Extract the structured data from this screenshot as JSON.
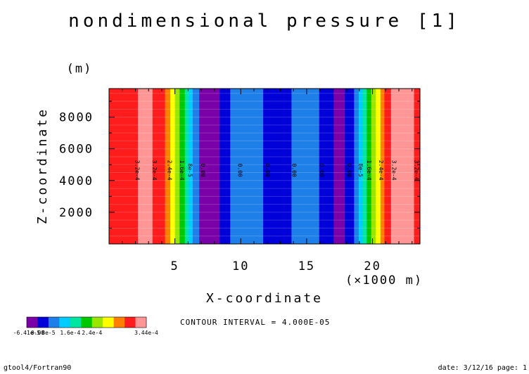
{
  "header": {
    "title": "nondimensional pressure [1]",
    "footer_left": "gtool4/Fortran90",
    "footer_right": "date: 3/12/16 page: 1",
    "contour_interval": "CONTOUR INTERVAL = 4.000E-05"
  },
  "chart_data": {
    "type": "heatmap",
    "title": "nondimensional pressure [1]",
    "xlabel": "X-coordinate",
    "x_unit": "(×1000 m)",
    "ylabel": "Z-coordinate",
    "y_unit": "(m)",
    "xlim": [
      0,
      23.6
    ],
    "ylim": [
      0,
      9800
    ],
    "x_ticks": [
      5,
      10,
      15,
      20
    ],
    "y_ticks": [
      2000,
      4000,
      6000,
      8000
    ],
    "x_minor_step": 1,
    "y_minor_step": 1000,
    "bands": [
      {
        "x0": 0.0,
        "x1": 2.2,
        "color": "#ff1c1c"
      },
      {
        "x0": 2.2,
        "x1": 3.3,
        "color": "#ff9696"
      },
      {
        "x0": 3.3,
        "x1": 4.25,
        "color": "#ff1c1c"
      },
      {
        "x0": 4.25,
        "x1": 4.65,
        "color": "#ff8000"
      },
      {
        "x0": 4.65,
        "x1": 5.0,
        "color": "#ffff00"
      },
      {
        "x0": 5.0,
        "x1": 5.35,
        "color": "#99e600"
      },
      {
        "x0": 5.35,
        "x1": 5.75,
        "color": "#00c800"
      },
      {
        "x0": 5.75,
        "x1": 6.05,
        "color": "#00e6a0"
      },
      {
        "x0": 6.05,
        "x1": 6.35,
        "color": "#00ccff"
      },
      {
        "x0": 6.35,
        "x1": 6.85,
        "color": "#1f7fe8"
      },
      {
        "x0": 6.85,
        "x1": 8.4,
        "color": "#7a00a8"
      },
      {
        "x0": 8.4,
        "x1": 9.2,
        "color": "#0000d8"
      },
      {
        "x0": 9.2,
        "x1": 11.7,
        "color": "#1f7fe8"
      },
      {
        "x0": 11.7,
        "x1": 13.85,
        "color": "#0000d8"
      },
      {
        "x0": 13.85,
        "x1": 15.95,
        "color": "#1f7fe8"
      },
      {
        "x0": 15.95,
        "x1": 17.05,
        "color": "#0000d8"
      },
      {
        "x0": 17.05,
        "x1": 17.9,
        "color": "#7a00a8"
      },
      {
        "x0": 17.9,
        "x1": 18.6,
        "color": "#0000d8"
      },
      {
        "x0": 18.6,
        "x1": 18.95,
        "color": "#1f7fe8"
      },
      {
        "x0": 18.95,
        "x1": 19.25,
        "color": "#00ccff"
      },
      {
        "x0": 19.25,
        "x1": 19.55,
        "color": "#00e6a0"
      },
      {
        "x0": 19.55,
        "x1": 19.9,
        "color": "#00c800"
      },
      {
        "x0": 19.9,
        "x1": 20.25,
        "color": "#99e600"
      },
      {
        "x0": 20.25,
        "x1": 20.6,
        "color": "#ffff00"
      },
      {
        "x0": 20.6,
        "x1": 20.9,
        "color": "#ff8000"
      },
      {
        "x0": 20.9,
        "x1": 21.4,
        "color": "#ff1c1c"
      },
      {
        "x0": 21.4,
        "x1": 23.15,
        "color": "#ff9696"
      },
      {
        "x0": 23.15,
        "x1": 23.6,
        "color": "#ff1c1c"
      }
    ],
    "contour_labels": [
      {
        "x": 2.0,
        "text": "3.2e-4"
      },
      {
        "x": 3.3,
        "text": "3.2e-4"
      },
      {
        "x": 4.45,
        "text": "2.4e-4"
      },
      {
        "x": 5.4,
        "text": "1.6e-4"
      },
      {
        "x": 6.0,
        "text": "8e-5"
      },
      {
        "x": 7.0,
        "text": "0.00"
      },
      {
        "x": 9.8,
        "text": "0.00"
      },
      {
        "x": 11.9,
        "text": "0.00"
      },
      {
        "x": 13.9,
        "text": "0.00"
      },
      {
        "x": 16.0,
        "text": "0.00"
      },
      {
        "x": 18.1,
        "text": "0.00"
      },
      {
        "x": 18.95,
        "text": "8e-5"
      },
      {
        "x": 19.6,
        "text": "1.6e-4"
      },
      {
        "x": 20.5,
        "text": "2.4e-4"
      },
      {
        "x": 21.5,
        "text": "3.2e-4"
      },
      {
        "x": 23.2,
        "text": "3.2e-4"
      }
    ],
    "contour_label_z": 4650,
    "colorbar": {
      "colors": [
        "#7a00a8",
        "#0000d8",
        "#1f7fe8",
        "#00ccff",
        "#00e6a0",
        "#00c800",
        "#99e600",
        "#ffff00",
        "#ff8000",
        "#ff1c1c",
        "#ff9696"
      ],
      "labels": [
        "-6.41e-5",
        "0.00",
        "8e-5",
        "1.6e-4",
        "2.4e-4",
        "3.44e-4"
      ],
      "label_positions": [
        0,
        1,
        2,
        4,
        6,
        11
      ]
    },
    "grid": false
  }
}
